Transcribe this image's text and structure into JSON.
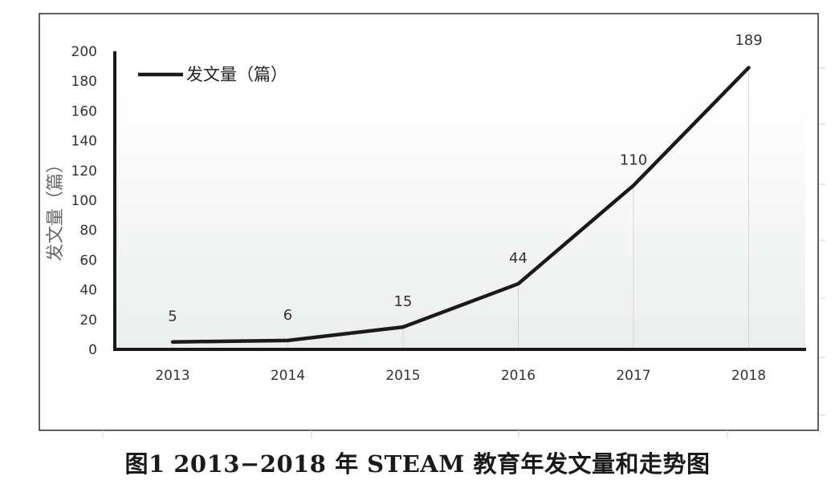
{
  "chart_data": {
    "type": "line",
    "categories": [
      "2013",
      "2014",
      "2015",
      "2016",
      "2017",
      "2018"
    ],
    "series": [
      {
        "name": "发文量（篇）",
        "values": [
          5,
          6,
          15,
          44,
          110,
          189
        ],
        "color": "#1a1a1a"
      }
    ],
    "data_labels": [
      "5",
      "6",
      "15",
      "44",
      "110",
      "189"
    ],
    "ylabel": "发文量（篇）",
    "xlabel": "",
    "ylim": [
      0,
      200
    ],
    "yticks": [
      "0",
      "20",
      "40",
      "60",
      "80",
      "100",
      "120",
      "140",
      "160",
      "180",
      "200"
    ],
    "legend_position": "top-left",
    "grid": false
  },
  "caption": "图1   2013−2018 年 STEAM 教育年发文量和走势图"
}
